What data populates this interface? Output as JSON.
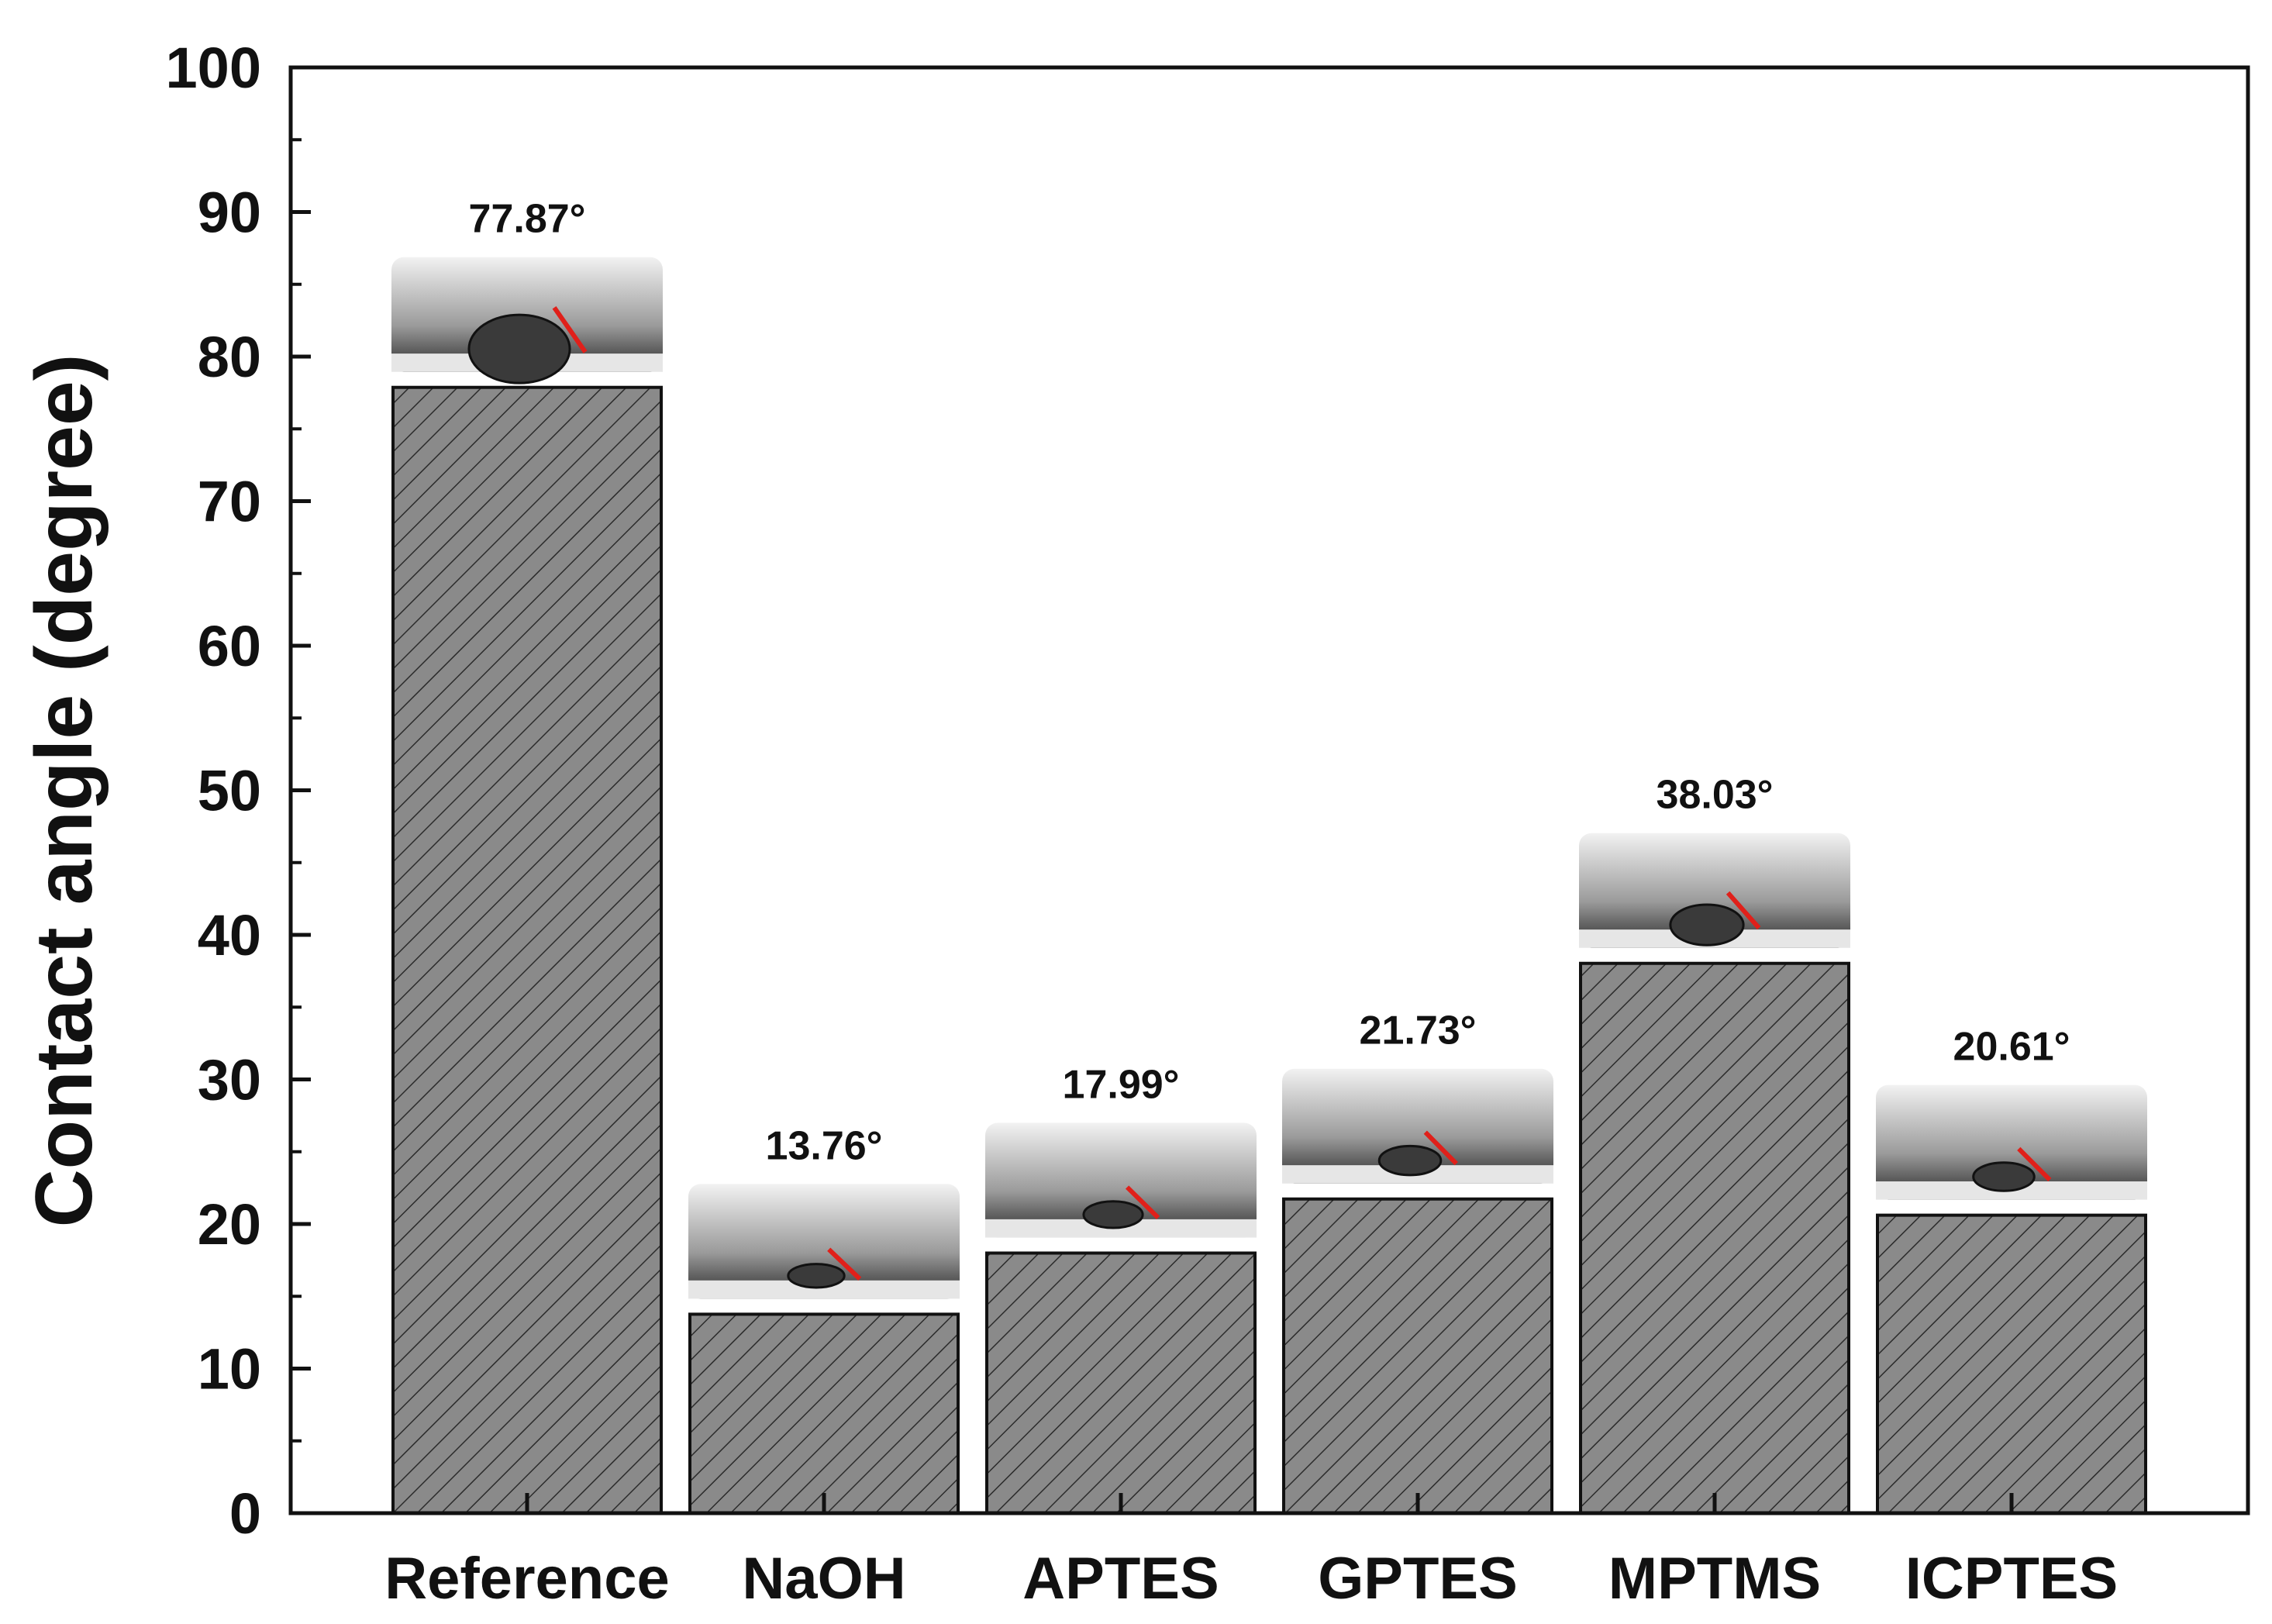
{
  "chart_data": {
    "type": "bar",
    "categories": [
      "Reference",
      "NaOH",
      "APTES",
      "GPTES",
      "MPTMS",
      "ICPTES"
    ],
    "values": [
      77.87,
      13.76,
      17.99,
      21.73,
      38.03,
      20.61
    ],
    "data_labels": [
      "77.87°",
      "13.76°",
      "17.99°",
      "21.73°",
      "38.03°",
      "20.61°"
    ],
    "title": "",
    "xlabel": "",
    "ylabel": "Contact angle (degree)",
    "ylim": [
      0,
      100
    ],
    "yticks": [
      "0",
      "10",
      "20",
      "30",
      "40",
      "50",
      "60",
      "70",
      "80",
      "90",
      "100"
    ],
    "grid": false,
    "bar_fill": "#8a8a8a",
    "bar_pattern": "diagonal-hatch",
    "inset_images": "droplet-photo"
  }
}
